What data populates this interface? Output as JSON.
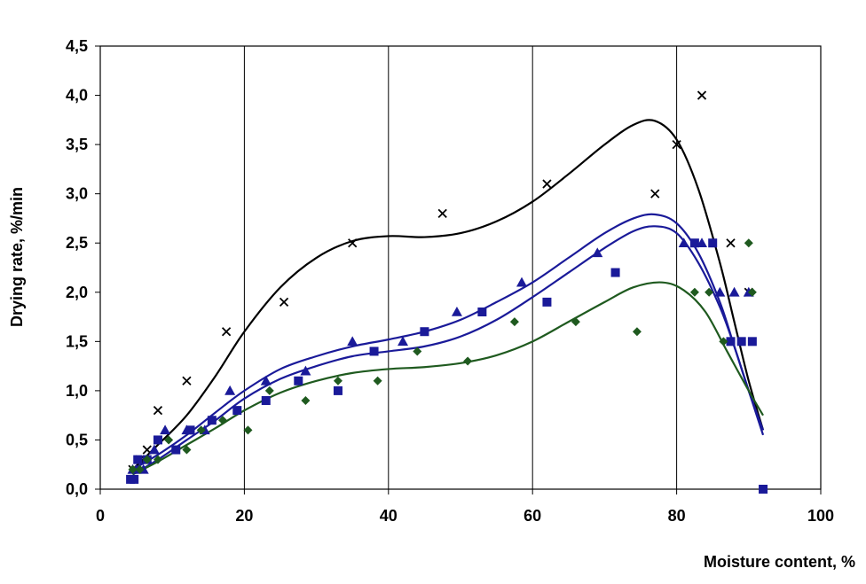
{
  "chart_data": {
    "type": "scatter",
    "xlabel": "Moisture content, %",
    "ylabel": "Drying rate, %/min",
    "xlim": [
      0,
      100
    ],
    "ylim": [
      0,
      4.5
    ],
    "x_ticks": [
      "0",
      "20",
      "40",
      "60",
      "80",
      "100"
    ],
    "y_ticks": [
      "0,0",
      "0,5",
      "1,0",
      "1,5",
      "2,0",
      "2,5",
      "3,0",
      "3,5",
      "4,0",
      "4,5"
    ],
    "grid": "vertical",
    "legend": "none",
    "series": [
      {
        "marker": "cross",
        "color": "#000000",
        "points": [
          [
            4.5,
            0.2
          ],
          [
            5.5,
            0.3
          ],
          [
            6.5,
            0.4
          ],
          [
            8,
            0.8
          ],
          [
            12,
            1.1
          ],
          [
            17.5,
            1.6
          ],
          [
            25.5,
            1.9
          ],
          [
            35,
            2.5
          ],
          [
            47.5,
            2.8
          ],
          [
            62,
            3.1
          ],
          [
            77,
            3.0
          ],
          [
            80,
            3.5
          ],
          [
            83.5,
            4.0
          ],
          [
            87.5,
            2.5
          ],
          [
            90,
            2.0
          ]
        ],
        "trend": [
          [
            4.5,
            0.2
          ],
          [
            8,
            0.45
          ],
          [
            12,
            0.75
          ],
          [
            16,
            1.15
          ],
          [
            20,
            1.6
          ],
          [
            25,
            2.05
          ],
          [
            30,
            2.35
          ],
          [
            35,
            2.52
          ],
          [
            40,
            2.57
          ],
          [
            45,
            2.56
          ],
          [
            50,
            2.6
          ],
          [
            55,
            2.72
          ],
          [
            60,
            2.92
          ],
          [
            65,
            3.2
          ],
          [
            70,
            3.5
          ],
          [
            74,
            3.7
          ],
          [
            77,
            3.74
          ],
          [
            80,
            3.55
          ],
          [
            83,
            3.05
          ],
          [
            86,
            2.3
          ],
          [
            88,
            1.7
          ],
          [
            90,
            1.1
          ],
          [
            92,
            0.6
          ]
        ]
      },
      {
        "marker": "triangle",
        "color": "#1a1a99",
        "points": [
          [
            4.5,
            0.2
          ],
          [
            5,
            0.2
          ],
          [
            6,
            0.2
          ],
          [
            6.5,
            0.3
          ],
          [
            7.5,
            0.4
          ],
          [
            9,
            0.6
          ],
          [
            12,
            0.6
          ],
          [
            14.5,
            0.6
          ],
          [
            18,
            1.0
          ],
          [
            23,
            1.1
          ],
          [
            28.5,
            1.2
          ],
          [
            35,
            1.5
          ],
          [
            42,
            1.5
          ],
          [
            49.5,
            1.8
          ],
          [
            58.5,
            2.1
          ],
          [
            69,
            2.4
          ],
          [
            81,
            2.5
          ],
          [
            83.5,
            2.5
          ],
          [
            86,
            2.0
          ],
          [
            88,
            2.0
          ],
          [
            90,
            2.0
          ]
        ],
        "trend": [
          [
            4.5,
            0.2
          ],
          [
            8,
            0.35
          ],
          [
            12,
            0.55
          ],
          [
            16,
            0.78
          ],
          [
            20,
            1.0
          ],
          [
            25,
            1.22
          ],
          [
            30,
            1.35
          ],
          [
            35,
            1.45
          ],
          [
            40,
            1.52
          ],
          [
            45,
            1.6
          ],
          [
            50,
            1.72
          ],
          [
            55,
            1.9
          ],
          [
            60,
            2.1
          ],
          [
            65,
            2.35
          ],
          [
            70,
            2.6
          ],
          [
            74,
            2.75
          ],
          [
            77,
            2.79
          ],
          [
            80,
            2.7
          ],
          [
            83,
            2.4
          ],
          [
            86,
            1.9
          ],
          [
            88,
            1.45
          ],
          [
            90,
            1.0
          ],
          [
            92,
            0.55
          ]
        ]
      },
      {
        "marker": "square",
        "color": "#1a1a99",
        "points": [
          [
            4.2,
            0.1
          ],
          [
            4.7,
            0.1
          ],
          [
            5.2,
            0.3
          ],
          [
            6.5,
            0.3
          ],
          [
            8,
            0.5
          ],
          [
            10.5,
            0.4
          ],
          [
            12.5,
            0.6
          ],
          [
            15.5,
            0.7
          ],
          [
            19,
            0.8
          ],
          [
            23,
            0.9
          ],
          [
            27.5,
            1.1
          ],
          [
            33,
            1.0
          ],
          [
            38,
            1.4
          ],
          [
            45,
            1.6
          ],
          [
            53,
            1.8
          ],
          [
            62,
            1.9
          ],
          [
            71.5,
            2.2
          ],
          [
            82.5,
            2.5
          ],
          [
            85,
            2.5
          ],
          [
            87.5,
            1.5
          ],
          [
            89,
            1.5
          ],
          [
            90.5,
            1.5
          ],
          [
            92,
            0.0
          ]
        ],
        "trend": [
          [
            4.5,
            0.15
          ],
          [
            8,
            0.3
          ],
          [
            12,
            0.5
          ],
          [
            16,
            0.7
          ],
          [
            20,
            0.92
          ],
          [
            25,
            1.12
          ],
          [
            30,
            1.25
          ],
          [
            35,
            1.35
          ],
          [
            40,
            1.4
          ],
          [
            45,
            1.45
          ],
          [
            50,
            1.55
          ],
          [
            55,
            1.72
          ],
          [
            60,
            1.95
          ],
          [
            65,
            2.2
          ],
          [
            70,
            2.45
          ],
          [
            74,
            2.62
          ],
          [
            77,
            2.67
          ],
          [
            80,
            2.6
          ],
          [
            83,
            2.3
          ],
          [
            86,
            1.85
          ],
          [
            88,
            1.45
          ],
          [
            90,
            1.0
          ],
          [
            92,
            0.6
          ]
        ]
      },
      {
        "marker": "diamond",
        "color": "#1f5a1f",
        "points": [
          [
            4.5,
            0.2
          ],
          [
            5.5,
            0.2
          ],
          [
            6.5,
            0.3
          ],
          [
            8,
            0.3
          ],
          [
            9.5,
            0.5
          ],
          [
            12,
            0.4
          ],
          [
            14,
            0.6
          ],
          [
            17,
            0.7
          ],
          [
            20.5,
            0.6
          ],
          [
            23.5,
            1.0
          ],
          [
            28.5,
            0.9
          ],
          [
            33,
            1.1
          ],
          [
            38.5,
            1.1
          ],
          [
            44,
            1.4
          ],
          [
            51,
            1.3
          ],
          [
            57.5,
            1.7
          ],
          [
            66,
            1.7
          ],
          [
            74.5,
            1.6
          ],
          [
            82.5,
            2.0
          ],
          [
            84.5,
            2.0
          ],
          [
            86.5,
            1.5
          ],
          [
            90,
            2.5
          ],
          [
            90.5,
            2.0
          ]
        ],
        "trend": [
          [
            4.5,
            0.15
          ],
          [
            8,
            0.28
          ],
          [
            12,
            0.45
          ],
          [
            16,
            0.62
          ],
          [
            20,
            0.8
          ],
          [
            25,
            0.98
          ],
          [
            30,
            1.1
          ],
          [
            35,
            1.18
          ],
          [
            40,
            1.22
          ],
          [
            45,
            1.24
          ],
          [
            50,
            1.28
          ],
          [
            55,
            1.36
          ],
          [
            60,
            1.5
          ],
          [
            65,
            1.7
          ],
          [
            70,
            1.9
          ],
          [
            74,
            2.05
          ],
          [
            78,
            2.1
          ],
          [
            81,
            2.02
          ],
          [
            84,
            1.8
          ],
          [
            87,
            1.4
          ],
          [
            90,
            1.0
          ],
          [
            92,
            0.75
          ]
        ]
      }
    ]
  }
}
